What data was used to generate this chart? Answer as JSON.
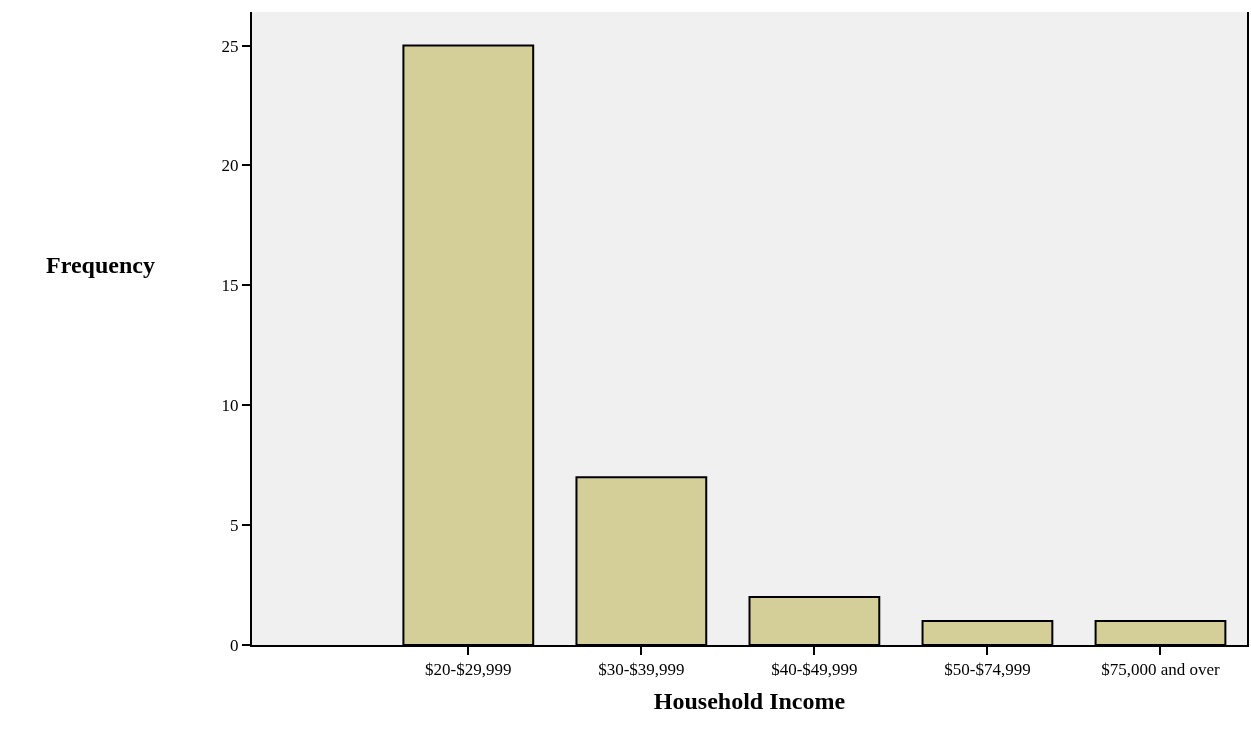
{
  "chart_data": {
    "type": "bar",
    "xlabel": "Household Income",
    "ylabel": "Frequency",
    "categories": [
      "$20-$29,999",
      "$30-$39,999",
      "$40-$49,999",
      "$50-$74,999",
      "$75,000 and over"
    ],
    "values": [
      25,
      7,
      2,
      1,
      1
    ],
    "color": "#d4cf98",
    "ylim": [
      0,
      26.4
    ],
    "yticks": [
      0,
      5,
      10,
      15,
      20,
      25
    ],
    "grid": false,
    "legend": false
  }
}
